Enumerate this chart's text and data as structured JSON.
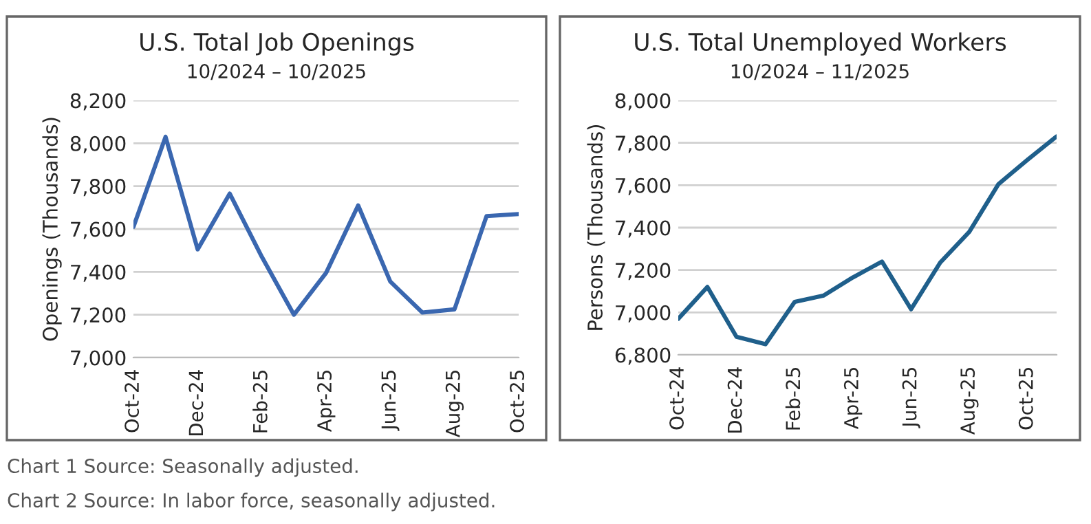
{
  "chart_data": [
    {
      "type": "line",
      "title": "U.S. Total Job Openings",
      "subtitle": "10/2024 – 10/2025",
      "ylabel": "Openings (Thousands)",
      "categories": [
        "Oct-24",
        null,
        "Dec-24",
        null,
        "Feb-25",
        null,
        "Apr-25",
        null,
        "Jun-25",
        null,
        "Aug-25",
        null,
        "Oct-25"
      ],
      "series": [
        {
          "color": "#3a67b0",
          "values": [
            7610,
            8030,
            7505,
            7765,
            7470,
            7200,
            7395,
            7710,
            7355,
            7210,
            7225,
            7660,
            7670
          ]
        }
      ],
      "ylim": [
        7000,
        8200
      ],
      "yticks": [
        {
          "value": 7000,
          "label": "7,000"
        },
        {
          "value": 7200,
          "label": "7,200"
        },
        {
          "value": 7400,
          "label": "7,400"
        },
        {
          "value": 7600,
          "label": "7,600"
        },
        {
          "value": 7800,
          "label": "7,800"
        },
        {
          "value": 8000,
          "label": "8,000"
        },
        {
          "value": 8200,
          "label": "8,200"
        }
      ],
      "grid": "y",
      "marker": "none",
      "line_style": "solid",
      "annotations": [
        "Chart 1 Source: Seasonally adjusted.",
        "Chart 2 Source: In labor force, seasonally adjusted."
      ]
    },
    {
      "type": "line",
      "title": "U.S. Total Unemployed Workers",
      "subtitle": "10/2024 – 11/2025",
      "ylabel": "Persons (Thousands)",
      "categories": [
        "Oct-24",
        null,
        "Dec-24",
        null,
        "Feb-25",
        null,
        "Apr-25",
        null,
        "Jun-25",
        null,
        "Aug-25",
        null,
        "Oct-25",
        null
      ],
      "series": [
        {
          "color": "#1f5f8b",
          "values": [
            6970,
            7120,
            6885,
            6850,
            7050,
            7080,
            7165,
            7240,
            7015,
            7235,
            7380,
            7605,
            7720,
            7830
          ]
        }
      ],
      "ylim": [
        6800,
        8000
      ],
      "yticks": [
        {
          "value": 6800,
          "label": "6,800"
        },
        {
          "value": 7000,
          "label": "7,000"
        },
        {
          "value": 7200,
          "label": "7,200"
        },
        {
          "value": 7400,
          "label": "7,400"
        },
        {
          "value": 7600,
          "label": "7,600"
        },
        {
          "value": 7800,
          "label": "7,800"
        },
        {
          "value": 8000,
          "label": "8,000"
        }
      ],
      "grid": "y",
      "marker": "none",
      "line_style": "solid"
    }
  ]
}
